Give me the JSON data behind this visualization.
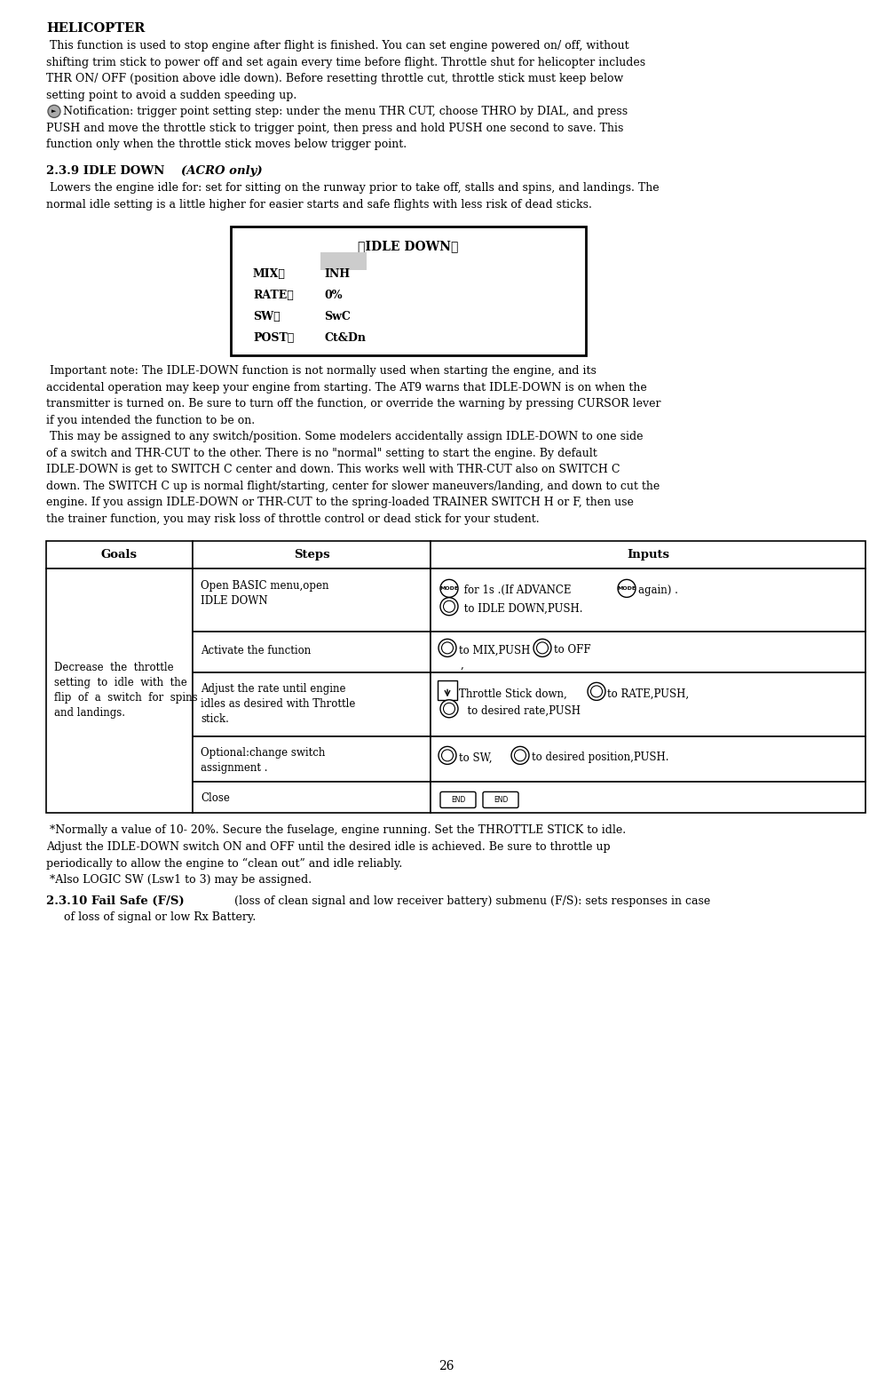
{
  "page_number": "26",
  "bg_color": "#ffffff",
  "title": "HELICOPTER",
  "box_title": "》IDLE DOWN《",
  "box_label1": "MIX：",
  "box_val1": "INH",
  "box_label2": "RATE：",
  "box_val2": "0%",
  "box_label3": "SW：",
  "box_val3": "SwC",
  "box_label4": "POST：",
  "box_val4": "Ct&Dn",
  "table_headers": [
    "Goals",
    "Steps",
    "Inputs"
  ],
  "goal_text": "Decrease  the  throttle\nsetting  to  idle  with  the\nflip  of  a  switch  for  spins\nand landings.",
  "section239": "2.3.9 IDLE DOWN ",
  "section239b": "(ACRO only)",
  "section2310_bold": "2.3.10 Fail Safe (F/S)",
  "section2310_rest": " (loss of clean signal and low receiver battery) submenu (F/S): sets responses in case",
  "section2310_rest2": "of loss of signal or low Rx Battery."
}
